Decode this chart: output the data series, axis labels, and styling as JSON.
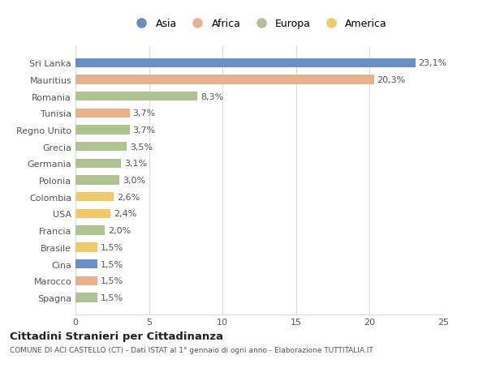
{
  "countries": [
    "Sri Lanka",
    "Mauritius",
    "Romania",
    "Tunisia",
    "Regno Unito",
    "Grecia",
    "Germania",
    "Polonia",
    "Colombia",
    "USA",
    "Francia",
    "Brasile",
    "Cina",
    "Marocco",
    "Spagna"
  ],
  "values": [
    23.1,
    20.3,
    8.3,
    3.7,
    3.7,
    3.5,
    3.1,
    3.0,
    2.6,
    2.4,
    2.0,
    1.5,
    1.5,
    1.5,
    1.5
  ],
  "labels": [
    "23,1%",
    "20,3%",
    "8,3%",
    "3,7%",
    "3,7%",
    "3,5%",
    "3,1%",
    "3,0%",
    "2,6%",
    "2,4%",
    "2,0%",
    "1,5%",
    "1,5%",
    "1,5%",
    "1,5%"
  ],
  "continents": [
    "Asia",
    "Africa",
    "Europa",
    "Africa",
    "Europa",
    "Europa",
    "Europa",
    "Europa",
    "America",
    "America",
    "Europa",
    "America",
    "Asia",
    "Africa",
    "Europa"
  ],
  "colors": {
    "Asia": "#6a8fc7",
    "Africa": "#e8b08a",
    "Europa": "#adc490",
    "America": "#f2c96a"
  },
  "title": "Cittadini Stranieri per Cittadinanza",
  "subtitle": "COMUNE DI ACI CASTELLO (CT) - Dati ISTAT al 1° gennaio di ogni anno - Elaborazione TUTTITALIA.IT",
  "xlim": [
    0,
    25
  ],
  "xticks": [
    0,
    5,
    10,
    15,
    20,
    25
  ],
  "bg_color": "#ffffff",
  "grid_color": "#dddddd",
  "label_fontsize": 8,
  "ytick_fontsize": 8,
  "xtick_fontsize": 8
}
